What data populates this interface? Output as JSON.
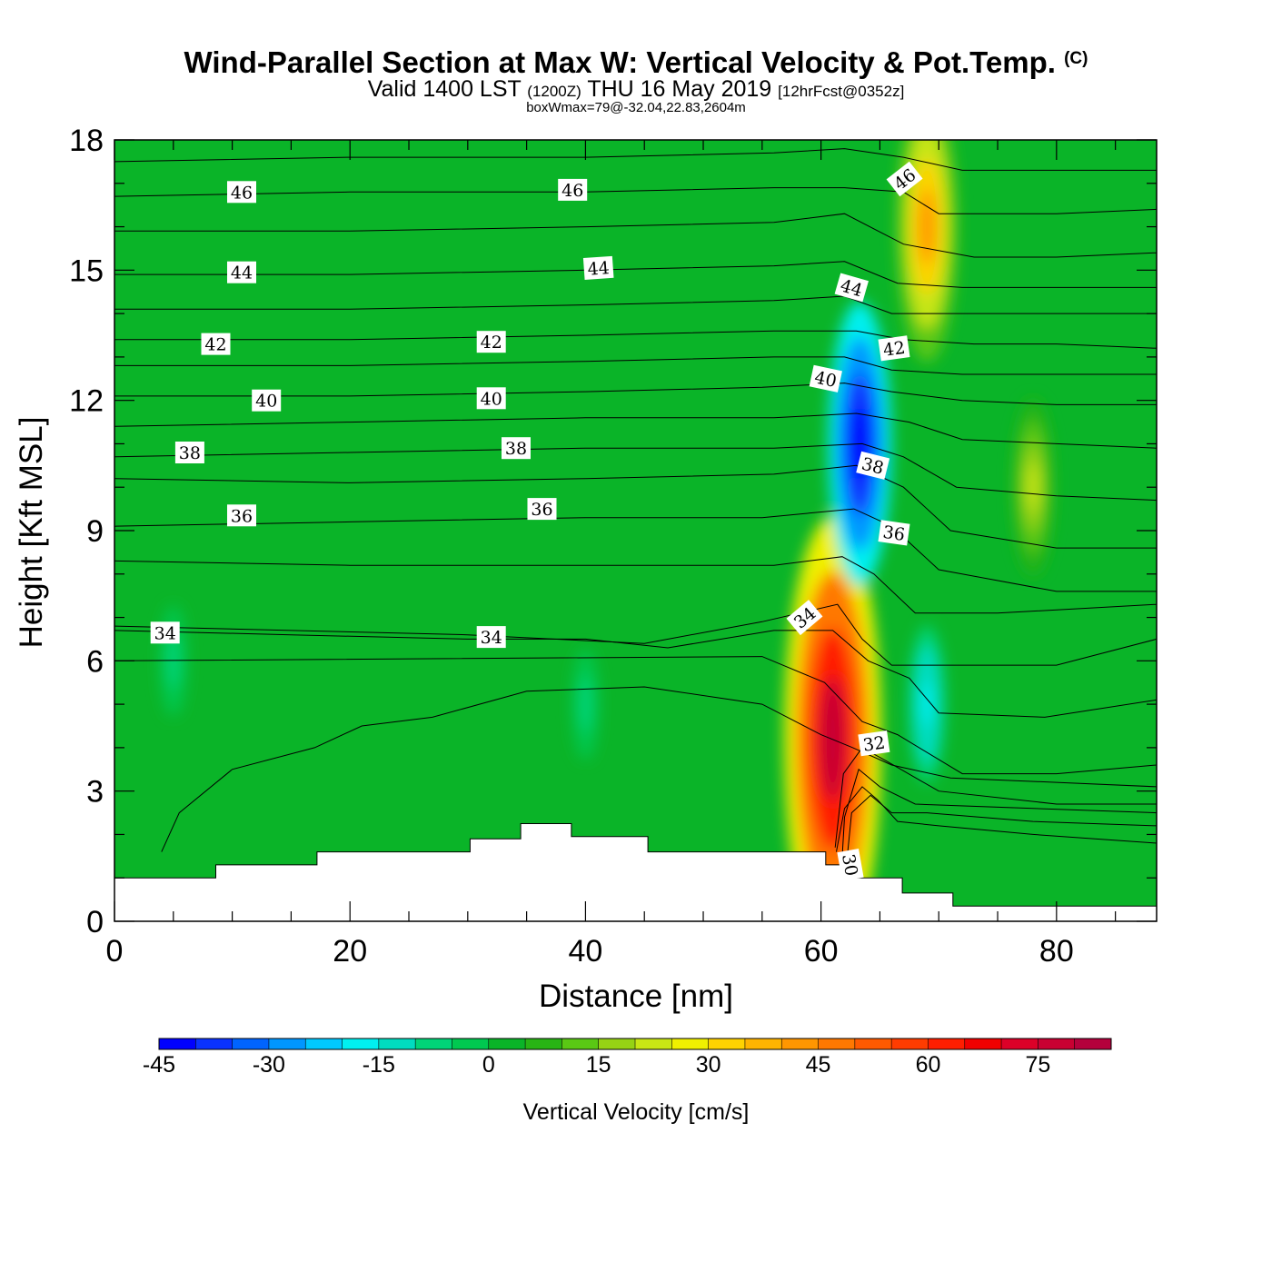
{
  "header": {
    "title_main": "Wind-Parallel Section at Max W: Vertical Velocity & Pot.Temp.",
    "title_c": "(C)",
    "sub_a": "Valid 1400 LST",
    "sub_b": "(1200Z)",
    "sub_c": "THU 16 May 2019",
    "sub_d": "[12hrFcst@0352z]",
    "line3": "boxWmax=79@-32.04,22.83,2604m"
  },
  "chart_data": {
    "type": "heatmap",
    "xlabel": "Distance [nm]",
    "ylabel": "Height [Kft MSL]",
    "xlim": [
      0,
      88.5
    ],
    "ylim": [
      0,
      18
    ],
    "x_ticks": [
      0,
      20,
      40,
      60,
      80
    ],
    "y_ticks": [
      0,
      3,
      6,
      9,
      12,
      15,
      18
    ],
    "colorbar": {
      "label": "Vertical Velocity [cm/s]",
      "levels": [
        -45,
        -40,
        -35,
        -30,
        -25,
        -20,
        -15,
        -10,
        -5,
        0,
        5,
        10,
        15,
        20,
        25,
        30,
        35,
        40,
        45,
        50,
        55,
        60,
        65,
        70,
        75,
        80,
        85
      ],
      "tick_labels": [
        "-45",
        "-30",
        "-15",
        "0",
        "15",
        "30",
        "45",
        "60",
        "75"
      ],
      "colors": [
        "#0000ff",
        "#0a32ff",
        "#0064ff",
        "#0096ff",
        "#00c8ff",
        "#00f0f0",
        "#00dcc0",
        "#00d478",
        "#00c850",
        "#0ab428",
        "#28b414",
        "#5ac814",
        "#96d214",
        "#c8e614",
        "#f0f000",
        "#ffd200",
        "#ffb400",
        "#ff9600",
        "#ff7800",
        "#ff5a00",
        "#ff3c00",
        "#ff1e00",
        "#f00000",
        "#dc0028",
        "#c80032",
        "#b4003c"
      ]
    },
    "w_maxima": [
      {
        "x": 61,
        "y": 4.2,
        "w": 79
      },
      {
        "x": 63.3,
        "y": 11,
        "w": -45
      },
      {
        "x": 69,
        "y": 16,
        "w": 42
      },
      {
        "x": 78,
        "y": 10,
        "w": 22
      },
      {
        "x": 69,
        "y": 5,
        "w": -18
      },
      {
        "x": 5,
        "y": 6,
        "w": -8
      },
      {
        "x": 40,
        "y": 5,
        "w": -8
      }
    ],
    "theta_contours": [
      {
        "level": 30,
        "points": [
          [
            61.3,
            1.6
          ],
          [
            62,
            2.6
          ],
          [
            63.5,
            3.1
          ],
          [
            64.8,
            2.8
          ],
          [
            66.5,
            2.3
          ],
          [
            70,
            2.2
          ],
          [
            78,
            2.0
          ],
          [
            88.5,
            1.8
          ]
        ]
      },
      {
        "level": 30.5,
        "points": [
          [
            62.2,
            1.4
          ],
          [
            62.6,
            2.5
          ],
          [
            64.2,
            2.9
          ],
          [
            66,
            2.5
          ],
          [
            69,
            2.5
          ],
          [
            78,
            2.3
          ],
          [
            88.5,
            2.2
          ]
        ]
      },
      {
        "level": 31,
        "points": [
          [
            61.8,
            1.5
          ],
          [
            62,
            2.4
          ],
          [
            63.2,
            3.5
          ],
          [
            65,
            3.1
          ],
          [
            68,
            2.7
          ],
          [
            78,
            2.6
          ],
          [
            88.5,
            2.5
          ]
        ]
      },
      {
        "level": 31.5,
        "points": [
          [
            61.2,
            1.7
          ],
          [
            61.9,
            3.4
          ],
          [
            63.5,
            4.0
          ],
          [
            65.5,
            3.7
          ],
          [
            70,
            3.0
          ],
          [
            80,
            2.7
          ],
          [
            88.5,
            2.7
          ]
        ]
      },
      {
        "level": 32,
        "points": [
          [
            4,
            1.6
          ],
          [
            5.5,
            2.5
          ],
          [
            10,
            3.5
          ],
          [
            17,
            4.0
          ],
          [
            21,
            4.5
          ],
          [
            27,
            4.7
          ],
          [
            35,
            5.3
          ],
          [
            45,
            5.4
          ],
          [
            55,
            5.0
          ],
          [
            60,
            4.3
          ],
          [
            62.7,
            4.0
          ],
          [
            66,
            3.6
          ],
          [
            71,
            3.3
          ],
          [
            80,
            3.2
          ],
          [
            88.5,
            3.1
          ]
        ]
      },
      {
        "level": 32.5,
        "points": [
          [
            0,
            6.0
          ],
          [
            55,
            6.1
          ],
          [
            60.3,
            5.5
          ],
          [
            63.5,
            4.6
          ],
          [
            66.5,
            4.3
          ],
          [
            72,
            3.4
          ],
          [
            80,
            3.4
          ],
          [
            88.5,
            3.6
          ]
        ]
      },
      {
        "level": 33.5,
        "points": [
          [
            0,
            6.7
          ],
          [
            15,
            6.6
          ],
          [
            30,
            6.5
          ],
          [
            40,
            6.5
          ],
          [
            47,
            6.3
          ],
          [
            56,
            6.7
          ],
          [
            61,
            6.7
          ],
          [
            64,
            6.0
          ],
          [
            67.5,
            5.6
          ],
          [
            70,
            4.8
          ],
          [
            79,
            4.7
          ],
          [
            88.5,
            5.1
          ]
        ]
      },
      {
        "level": 34,
        "points": [
          [
            0,
            6.8
          ],
          [
            15,
            6.7
          ],
          [
            30,
            6.6
          ],
          [
            45,
            6.4
          ],
          [
            55,
            6.9
          ],
          [
            61.4,
            7.3
          ],
          [
            63.5,
            6.5
          ],
          [
            66,
            5.9
          ],
          [
            70.5,
            5.9
          ],
          [
            80,
            5.9
          ],
          [
            88.5,
            6.5
          ]
        ]
      },
      {
        "level": 35,
        "points": [
          [
            0,
            8.3
          ],
          [
            20,
            8.2
          ],
          [
            40,
            8.2
          ],
          [
            56,
            8.2
          ],
          [
            61.8,
            8.4
          ],
          [
            64.5,
            8.0
          ],
          [
            68,
            7.1
          ],
          [
            75,
            7.1
          ],
          [
            88.5,
            7.3
          ]
        ]
      },
      {
        "level": 36,
        "points": [
          [
            0,
            9.1
          ],
          [
            20,
            9.2
          ],
          [
            40,
            9.3
          ],
          [
            55,
            9.3
          ],
          [
            62.8,
            9.5
          ],
          [
            66,
            9.1
          ],
          [
            70,
            8.1
          ],
          [
            80,
            7.6
          ],
          [
            88.5,
            7.6
          ]
        ]
      },
      {
        "level": 37,
        "points": [
          [
            0,
            10.2
          ],
          [
            20,
            10.1
          ],
          [
            40,
            10.2
          ],
          [
            56,
            10.3
          ],
          [
            63,
            10.5
          ],
          [
            67,
            10.0
          ],
          [
            71,
            9.0
          ],
          [
            80,
            8.6
          ],
          [
            88.5,
            8.6
          ]
        ]
      },
      {
        "level": 38,
        "points": [
          [
            0,
            10.7
          ],
          [
            20,
            10.8
          ],
          [
            40,
            10.9
          ],
          [
            56,
            10.9
          ],
          [
            63.5,
            11.0
          ],
          [
            67,
            10.7
          ],
          [
            71.5,
            10.0
          ],
          [
            80,
            9.8
          ],
          [
            88.5,
            9.7
          ]
        ]
      },
      {
        "level": 39,
        "points": [
          [
            0,
            11.4
          ],
          [
            20,
            11.5
          ],
          [
            40,
            11.6
          ],
          [
            56,
            11.6
          ],
          [
            63,
            11.7
          ],
          [
            67.5,
            11.5
          ],
          [
            72,
            11.1
          ],
          [
            80,
            11.0
          ],
          [
            88.5,
            10.9
          ]
        ]
      },
      {
        "level": 40,
        "points": [
          [
            0,
            12.1
          ],
          [
            20,
            12.1
          ],
          [
            40,
            12.2
          ],
          [
            55,
            12.3
          ],
          [
            62,
            12.4
          ],
          [
            66,
            12.2
          ],
          [
            72,
            12.0
          ],
          [
            80,
            11.9
          ],
          [
            88.5,
            11.9
          ]
        ]
      },
      {
        "level": 41,
        "points": [
          [
            0,
            12.8
          ],
          [
            20,
            12.8
          ],
          [
            40,
            12.9
          ],
          [
            56,
            13.0
          ],
          [
            62,
            13.0
          ],
          [
            66,
            12.7
          ],
          [
            72,
            12.6
          ],
          [
            80,
            12.6
          ],
          [
            88.5,
            12.6
          ]
        ]
      },
      {
        "level": 42,
        "points": [
          [
            0,
            13.4
          ],
          [
            20,
            13.4
          ],
          [
            40,
            13.5
          ],
          [
            56,
            13.6
          ],
          [
            63,
            13.6
          ],
          [
            67,
            13.4
          ],
          [
            73,
            13.3
          ],
          [
            80,
            13.3
          ],
          [
            88.5,
            13.2
          ]
        ]
      },
      {
        "level": 43,
        "points": [
          [
            0,
            14.1
          ],
          [
            20,
            14.1
          ],
          [
            40,
            14.2
          ],
          [
            56,
            14.3
          ],
          [
            62,
            14.4
          ],
          [
            66,
            14.0
          ],
          [
            72,
            14.0
          ],
          [
            80,
            14.0
          ],
          [
            88.5,
            14.0
          ]
        ]
      },
      {
        "level": 44,
        "points": [
          [
            0,
            14.9
          ],
          [
            20,
            14.9
          ],
          [
            40,
            15.0
          ],
          [
            56,
            15.1
          ],
          [
            62,
            15.2
          ],
          [
            66.5,
            14.7
          ],
          [
            72,
            14.6
          ],
          [
            80,
            14.6
          ],
          [
            88.5,
            14.6
          ]
        ]
      },
      {
        "level": 45,
        "points": [
          [
            0,
            15.9
          ],
          [
            20,
            15.9
          ],
          [
            40,
            16.0
          ],
          [
            56,
            16.1
          ],
          [
            62,
            16.3
          ],
          [
            67,
            15.6
          ],
          [
            73,
            15.3
          ],
          [
            80,
            15.3
          ],
          [
            88.5,
            15.4
          ]
        ]
      },
      {
        "level": 46,
        "points": [
          [
            0,
            16.7
          ],
          [
            20,
            16.8
          ],
          [
            40,
            16.8
          ],
          [
            56,
            16.9
          ],
          [
            62,
            16.9
          ],
          [
            67,
            16.8
          ],
          [
            70,
            16.3
          ],
          [
            80,
            16.3
          ],
          [
            88.5,
            16.4
          ]
        ]
      },
      {
        "level": 47,
        "points": [
          [
            0,
            17.5
          ],
          [
            20,
            17.6
          ],
          [
            40,
            17.6
          ],
          [
            56,
            17.7
          ],
          [
            62,
            17.8
          ],
          [
            67,
            17.6
          ],
          [
            72,
            17.3
          ],
          [
            80,
            17.3
          ],
          [
            88.5,
            17.3
          ]
        ]
      }
    ],
    "theta_labels": [
      {
        "text": "46",
        "x": 10.8,
        "y": 16.8,
        "angle": 0
      },
      {
        "text": "46",
        "x": 38.9,
        "y": 16.85,
        "angle": 0
      },
      {
        "text": "46",
        "x": 67.1,
        "y": 17.1,
        "angle": -38
      },
      {
        "text": "44",
        "x": 10.8,
        "y": 14.95,
        "angle": 0
      },
      {
        "text": "44",
        "x": 41.1,
        "y": 15.05,
        "angle": -4
      },
      {
        "text": "44",
        "x": 62.6,
        "y": 14.6,
        "angle": 16
      },
      {
        "text": "42",
        "x": 8.6,
        "y": 13.3,
        "angle": 0
      },
      {
        "text": "42",
        "x": 32,
        "y": 13.35,
        "angle": 0
      },
      {
        "text": "42",
        "x": 66.2,
        "y": 13.2,
        "angle": -8
      },
      {
        "text": "40",
        "x": 12.9,
        "y": 12.0,
        "angle": 0
      },
      {
        "text": "40",
        "x": 32,
        "y": 12.05,
        "angle": 0
      },
      {
        "text": "40",
        "x": 60.4,
        "y": 12.5,
        "angle": 12
      },
      {
        "text": "38",
        "x": 6.4,
        "y": 10.8,
        "angle": 0
      },
      {
        "text": "38",
        "x": 34.1,
        "y": 10.9,
        "angle": 0
      },
      {
        "text": "38",
        "x": 64.4,
        "y": 10.5,
        "angle": 14
      },
      {
        "text": "36",
        "x": 10.8,
        "y": 9.35,
        "angle": 0
      },
      {
        "text": "36",
        "x": 36.3,
        "y": 9.5,
        "angle": 0
      },
      {
        "text": "36",
        "x": 66.2,
        "y": 8.95,
        "angle": 8
      },
      {
        "text": "34",
        "x": 4.3,
        "y": 6.65,
        "angle": 0
      },
      {
        "text": "34",
        "x": 32,
        "y": 6.55,
        "angle": 0
      },
      {
        "text": "34",
        "x": 58.6,
        "y": 7.0,
        "angle": -40
      },
      {
        "text": "32",
        "x": 64.5,
        "y": 4.1,
        "angle": -8
      },
      {
        "text": "30",
        "x": 62.5,
        "y": 1.3,
        "angle": 80
      }
    ],
    "terrain_steps": [
      [
        0,
        1.0
      ],
      [
        8.6,
        1.0
      ],
      [
        8.6,
        1.3
      ],
      [
        17.2,
        1.3
      ],
      [
        17.2,
        1.6
      ],
      [
        30.2,
        1.6
      ],
      [
        30.2,
        1.9
      ],
      [
        34.5,
        1.9
      ],
      [
        34.5,
        2.25
      ],
      [
        38.8,
        2.25
      ],
      [
        38.8,
        1.95
      ],
      [
        45.3,
        1.95
      ],
      [
        45.3,
        1.6
      ],
      [
        60.4,
        1.6
      ],
      [
        60.4,
        1.3
      ],
      [
        62.6,
        1.3
      ],
      [
        62.6,
        1.0
      ],
      [
        66.9,
        1.0
      ],
      [
        66.9,
        0.65
      ],
      [
        71.2,
        0.65
      ],
      [
        71.2,
        0.35
      ],
      [
        88.5,
        0.35
      ]
    ]
  }
}
